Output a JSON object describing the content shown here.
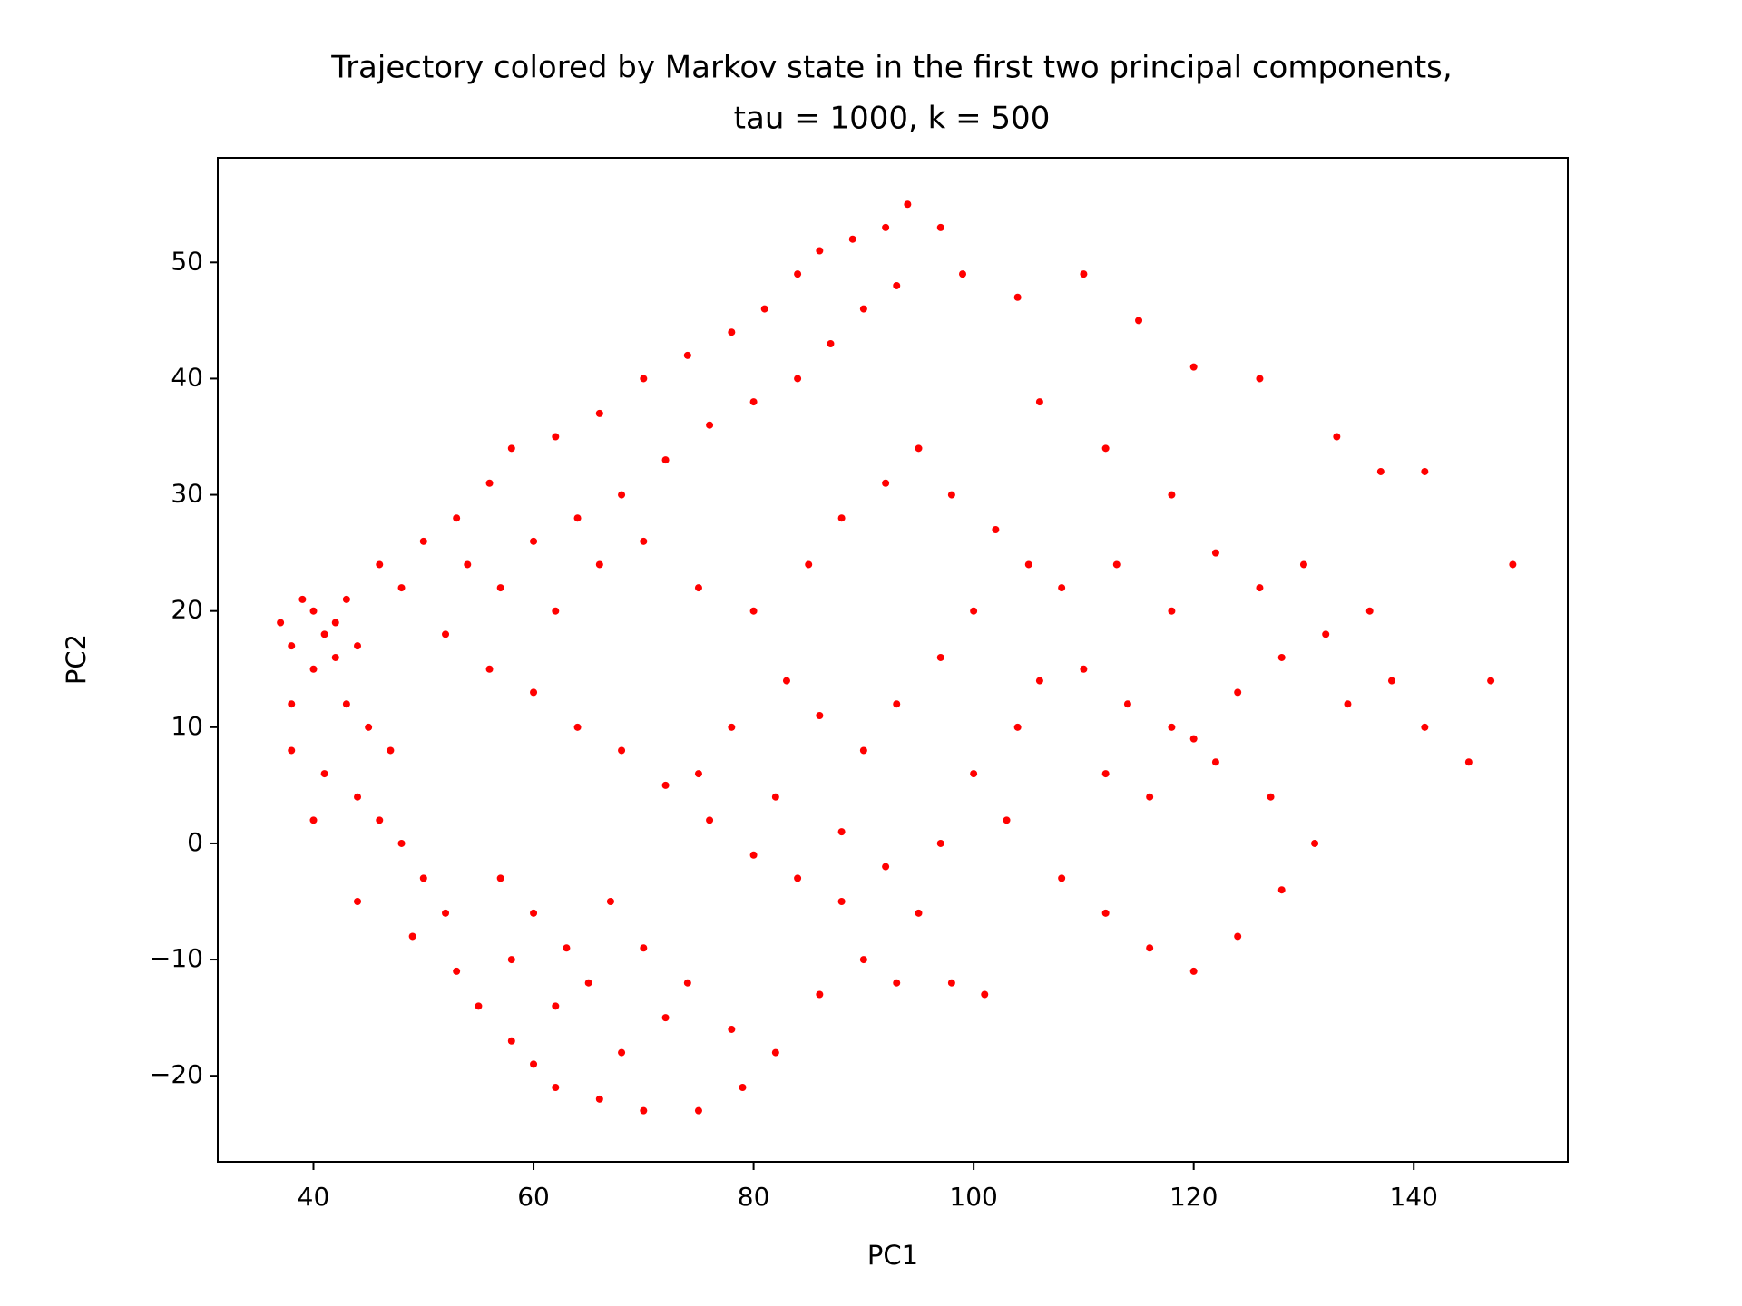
{
  "chart_data": {
    "type": "scatter",
    "title": [
      "Trajectory colored by Markov state in the first two principal components,",
      "tau = 1000, k = 500"
    ],
    "xlabel": "PC1",
    "ylabel": "PC2",
    "color": "#ff0000",
    "xlim": [
      31.3,
      154.0
    ],
    "ylim": [
      -27.4,
      59.0
    ],
    "xticks": [
      40,
      60,
      80,
      100,
      120,
      140
    ],
    "yticks": [
      {
        "value": -20,
        "label": "−20"
      },
      {
        "value": -10,
        "label": "−10"
      },
      0,
      10,
      20,
      30,
      40,
      50
    ],
    "x": [
      37,
      38,
      39,
      40,
      41,
      42,
      43,
      44,
      42,
      40,
      38,
      41,
      43,
      45,
      47,
      44,
      46,
      48,
      50,
      52,
      49,
      53,
      55,
      58,
      60,
      62,
      66,
      70,
      75,
      79,
      68,
      72,
      65,
      63,
      60,
      57,
      67,
      70,
      74,
      78,
      82,
      86,
      90,
      93,
      98,
      101,
      95,
      88,
      84,
      80,
      76,
      72,
      68,
      64,
      60,
      56,
      52,
      48,
      50,
      53,
      56,
      58,
      62,
      66,
      70,
      74,
      78,
      81,
      84,
      86,
      89,
      92,
      94,
      97,
      99,
      93,
      90,
      87,
      84,
      80,
      76,
      72,
      68,
      64,
      60,
      57,
      62,
      66,
      70,
      75,
      80,
      85,
      88,
      92,
      95,
      98,
      102,
      105,
      100,
      97,
      93,
      90,
      86,
      83,
      78,
      75,
      82,
      88,
      92,
      97,
      103,
      108,
      112,
      116,
      120,
      124,
      128,
      131,
      127,
      122,
      118,
      114,
      110,
      112,
      116,
      120,
      124,
      128,
      132,
      136,
      138,
      141,
      145,
      147,
      149,
      141,
      137,
      133,
      126,
      120,
      115,
      110,
      104,
      106,
      112,
      118,
      122,
      126,
      130,
      134,
      104,
      100,
      106,
      108,
      113,
      118,
      44,
      40,
      38,
      46,
      54,
      58,
      62
    ],
    "values": [
      19,
      17,
      21,
      20,
      18,
      19,
      21,
      17,
      16,
      15,
      8,
      6,
      12,
      10,
      8,
      4,
      2,
      0,
      -3,
      -6,
      -8,
      -11,
      -14,
      -17,
      -19,
      -21,
      -22,
      -23,
      -23,
      -21,
      -18,
      -15,
      -12,
      -9,
      -6,
      -3,
      -5,
      -9,
      -12,
      -16,
      -18,
      -13,
      -10,
      -12,
      -12,
      -13,
      -6,
      -5,
      -3,
      -1,
      2,
      5,
      8,
      10,
      13,
      15,
      18,
      22,
      26,
      28,
      31,
      34,
      35,
      37,
      40,
      42,
      44,
      46,
      49,
      51,
      52,
      53,
      55,
      53,
      49,
      48,
      46,
      43,
      40,
      38,
      36,
      33,
      30,
      28,
      26,
      22,
      20,
      24,
      26,
      22,
      20,
      24,
      28,
      31,
      34,
      30,
      27,
      24,
      20,
      16,
      12,
      8,
      11,
      14,
      10,
      6,
      4,
      1,
      -2,
      0,
      2,
      -3,
      -6,
      -9,
      -11,
      -8,
      -4,
      0,
      4,
      7,
      10,
      12,
      15,
      6,
      4,
      9,
      13,
      16,
      18,
      20,
      14,
      10,
      7,
      14,
      24,
      32,
      32,
      35,
      40,
      41,
      45,
      49,
      47,
      38,
      34,
      30,
      25,
      22,
      24,
      12,
      10,
      6,
      14,
      22,
      24,
      20,
      -5,
      2,
      12,
      24,
      24,
      -10,
      -14
    ]
  }
}
